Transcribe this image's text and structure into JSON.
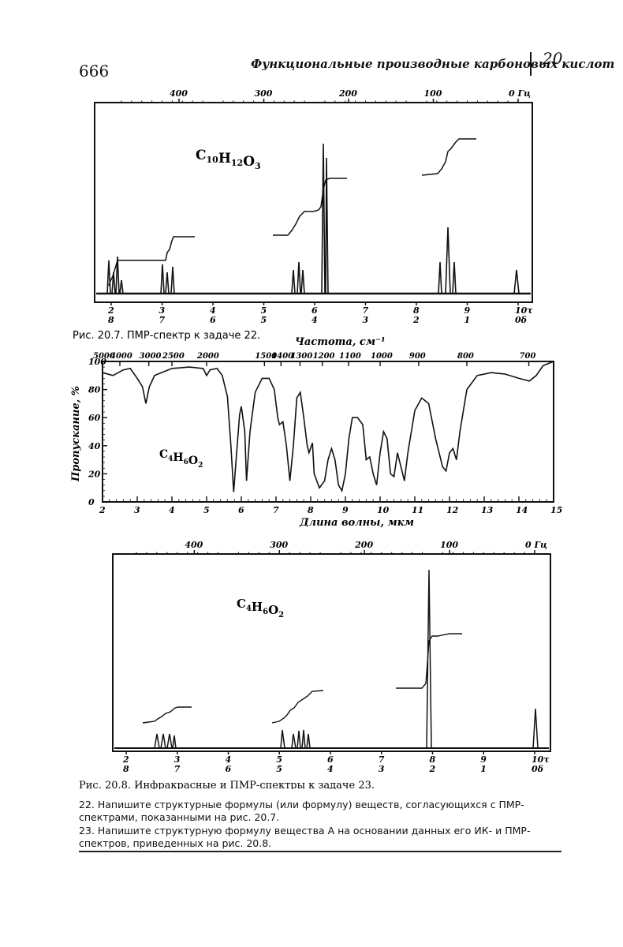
{
  "header": {
    "page_number": "666",
    "running_title": "Функциональные производные карбоновых кислот",
    "chapter": "20"
  },
  "fig1": {
    "formula": "C10H12O3",
    "top_ticks": [
      "400",
      "300",
      "200",
      "100",
      "0 Гц"
    ],
    "delta_ticks": [
      "2",
      "3",
      "4",
      "5",
      "6",
      "7",
      "8",
      "9",
      "10τ"
    ],
    "tau_ticks": [
      "8",
      "7",
      "6",
      "5",
      "4",
      "3",
      "2",
      "1",
      "0δ"
    ],
    "caption": "Рис. 20.7. ПМР-спектр к задаче 22."
  },
  "fig2": {
    "formula": "C4H6O2",
    "top_title": "Частота, см⁻¹",
    "top_ticks": [
      "5000",
      "4000",
      "3000",
      "2500",
      "2000",
      "1500",
      "1400",
      "1300",
      "1200",
      "1100",
      "1000",
      "900",
      "800",
      "700"
    ],
    "y_label": "Пропускание, %",
    "y_ticks": [
      "0",
      "20",
      "40",
      "60",
      "80",
      "100"
    ],
    "x_ticks": [
      "2",
      "3",
      "4",
      "5",
      "6",
      "7",
      "8",
      "9",
      "10",
      "11",
      "12",
      "13",
      "14",
      "15"
    ],
    "x_label": "Длина волны, мкм"
  },
  "fig3": {
    "formula": "C4H6O2",
    "top_ticks": [
      "400",
      "300",
      "200",
      "100",
      "0 Гц"
    ],
    "delta_ticks": [
      "2",
      "3",
      "4",
      "5",
      "6",
      "7",
      "8",
      "9",
      "10τ"
    ],
    "tau_ticks": [
      "8",
      "7",
      "6",
      "5",
      "4",
      "3",
      "2",
      "1",
      "0δ"
    ],
    "caption": "Рис. 20.8. Инфракрасные и ПМР-спектры к задаче 23."
  },
  "problems": [
    "22. Напишите структурные формулы (или формулу) веществ, согласующихся с ПМР-спектрами, показанными на рис. 20.7.",
    "23. Напишите структурную формулу вещества А на основании данных его ИК- и ПМР-спектров, приведенных на рис. 20.8."
  ]
}
